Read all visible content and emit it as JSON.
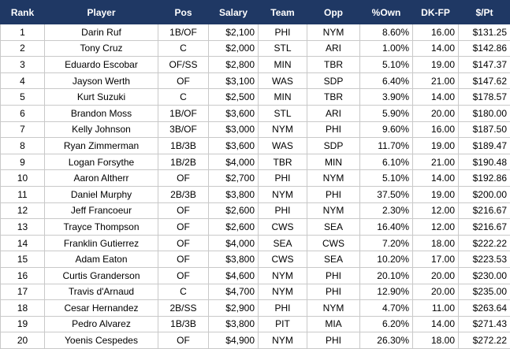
{
  "table": {
    "headers": [
      "Rank",
      "Player",
      "Pos",
      "Salary",
      "Team",
      "Opp",
      "%Own",
      "DK-FP",
      "$/Pt"
    ],
    "rows": [
      [
        "1",
        "Darin Ruf",
        "1B/OF",
        "$2,100",
        "PHI",
        "NYM",
        "8.60%",
        "16.00",
        "$131.25"
      ],
      [
        "2",
        "Tony Cruz",
        "C",
        "$2,000",
        "STL",
        "ARI",
        "1.00%",
        "14.00",
        "$142.86"
      ],
      [
        "3",
        "Eduardo Escobar",
        "OF/SS",
        "$2,800",
        "MIN",
        "TBR",
        "5.10%",
        "19.00",
        "$147.37"
      ],
      [
        "4",
        "Jayson Werth",
        "OF",
        "$3,100",
        "WAS",
        "SDP",
        "6.40%",
        "21.00",
        "$147.62"
      ],
      [
        "5",
        "Kurt Suzuki",
        "C",
        "$2,500",
        "MIN",
        "TBR",
        "3.90%",
        "14.00",
        "$178.57"
      ],
      [
        "6",
        "Brandon Moss",
        "1B/OF",
        "$3,600",
        "STL",
        "ARI",
        "5.90%",
        "20.00",
        "$180.00"
      ],
      [
        "7",
        "Kelly Johnson",
        "3B/OF",
        "$3,000",
        "NYM",
        "PHI",
        "9.60%",
        "16.00",
        "$187.50"
      ],
      [
        "8",
        "Ryan Zimmerman",
        "1B/3B",
        "$3,600",
        "WAS",
        "SDP",
        "11.70%",
        "19.00",
        "$189.47"
      ],
      [
        "9",
        "Logan Forsythe",
        "1B/2B",
        "$4,000",
        "TBR",
        "MIN",
        "6.10%",
        "21.00",
        "$190.48"
      ],
      [
        "10",
        "Aaron Altherr",
        "OF",
        "$2,700",
        "PHI",
        "NYM",
        "5.10%",
        "14.00",
        "$192.86"
      ],
      [
        "11",
        "Daniel Murphy",
        "2B/3B",
        "$3,800",
        "NYM",
        "PHI",
        "37.50%",
        "19.00",
        "$200.00"
      ],
      [
        "12",
        "Jeff Francoeur",
        "OF",
        "$2,600",
        "PHI",
        "NYM",
        "2.30%",
        "12.00",
        "$216.67"
      ],
      [
        "13",
        "Trayce Thompson",
        "OF",
        "$2,600",
        "CWS",
        "SEA",
        "16.40%",
        "12.00",
        "$216.67"
      ],
      [
        "14",
        "Franklin Gutierrez",
        "OF",
        "$4,000",
        "SEA",
        "CWS",
        "7.20%",
        "18.00",
        "$222.22"
      ],
      [
        "15",
        "Adam Eaton",
        "OF",
        "$3,800",
        "CWS",
        "SEA",
        "10.20%",
        "17.00",
        "$223.53"
      ],
      [
        "16",
        "Curtis Granderson",
        "OF",
        "$4,600",
        "NYM",
        "PHI",
        "20.10%",
        "20.00",
        "$230.00"
      ],
      [
        "17",
        "Travis d'Arnaud",
        "C",
        "$4,700",
        "NYM",
        "PHI",
        "12.90%",
        "20.00",
        "$235.00"
      ],
      [
        "18",
        "Cesar Hernandez",
        "2B/SS",
        "$2,900",
        "PHI",
        "NYM",
        "4.70%",
        "11.00",
        "$263.64"
      ],
      [
        "19",
        "Pedro Alvarez",
        "1B/3B",
        "$3,800",
        "PIT",
        "MIA",
        "6.20%",
        "14.00",
        "$271.43"
      ],
      [
        "20",
        "Yoenis Cespedes",
        "OF",
        "$4,900",
        "NYM",
        "PHI",
        "26.30%",
        "18.00",
        "$272.22"
      ]
    ]
  },
  "colors": {
    "header_bg": "#1f3864",
    "header_text": "#ffffff",
    "grid": "#c9c9c9"
  }
}
